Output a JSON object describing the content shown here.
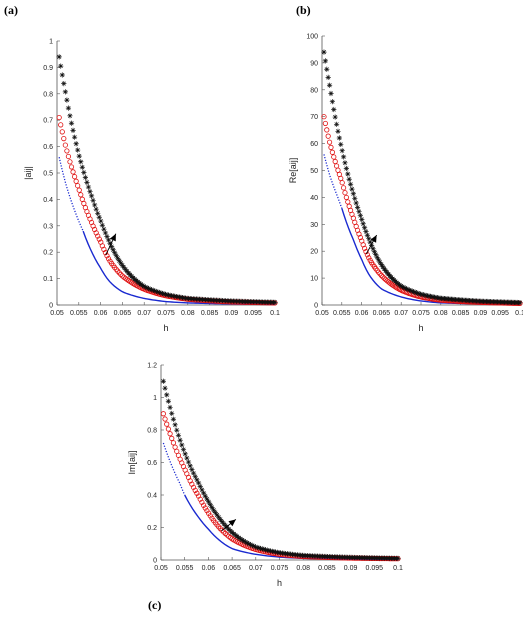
{
  "panel_labels": [
    "(a)",
    "(b)",
    "(c)"
  ],
  "series_styles": {
    "blue_solid": "#1a2ad0",
    "blue_dotted": "#1a2ad0",
    "red_circles": "#e01010",
    "black_stars": "#111111"
  },
  "chart_data": [
    {
      "type": "scatter",
      "panel": "(a)",
      "xlabel": "h",
      "ylabel": "|aij|",
      "xlim": [
        0.05,
        0.1
      ],
      "ylim": [
        0,
        1
      ],
      "x_ticks": [
        "0.05",
        "0.055",
        "0.06",
        "0.065",
        "0.07",
        "0.075",
        "0.08",
        "0.085",
        "0.09",
        "0.095",
        "0.1"
      ],
      "y_ticks": [
        "0",
        "0.1",
        "0.2",
        "0.3",
        "0.4",
        "0.5",
        "0.6",
        "0.7",
        "0.8",
        "0.9",
        "1"
      ],
      "series": [
        {
          "style": "blue_solid",
          "x": [
            0.056,
            0.058,
            0.06,
            0.062,
            0.065,
            0.07,
            0.075,
            0.08,
            0.09,
            0.1
          ],
          "y": [
            0.28,
            0.2,
            0.14,
            0.09,
            0.05,
            0.025,
            0.013,
            0.008,
            0.004,
            0.002
          ]
        },
        {
          "style": "blue_dotted",
          "x": [
            0.0505,
            0.052,
            0.054,
            0.056
          ],
          "y": [
            0.56,
            0.46,
            0.36,
            0.28
          ]
        },
        {
          "style": "red_circles",
          "x": [
            0.0505,
            0.052,
            0.055,
            0.058,
            0.06,
            0.062,
            0.065,
            0.07,
            0.075,
            0.08,
            0.09,
            0.1
          ],
          "y": [
            0.71,
            0.6,
            0.44,
            0.31,
            0.24,
            0.17,
            0.11,
            0.06,
            0.035,
            0.022,
            0.012,
            0.008
          ]
        },
        {
          "style": "black_stars",
          "x": [
            0.0505,
            0.052,
            0.055,
            0.058,
            0.06,
            0.062,
            0.065,
            0.07,
            0.075,
            0.08,
            0.09,
            0.1
          ],
          "y": [
            0.94,
            0.8,
            0.57,
            0.41,
            0.32,
            0.24,
            0.15,
            0.07,
            0.04,
            0.025,
            0.015,
            0.01
          ]
        }
      ],
      "arrow": {
        "x1": 0.0612,
        "y1": 0.19,
        "x2": 0.0635,
        "y2": 0.27
      }
    },
    {
      "type": "scatter",
      "panel": "(b)",
      "xlabel": "h",
      "ylabel": "Re[aij]",
      "xlim": [
        0.05,
        0.1
      ],
      "ylim": [
        0,
        100
      ],
      "x_ticks": [
        "0.05",
        "0.055",
        "0.06",
        "0.065",
        "0.07",
        "0.075",
        "0.08",
        "0.085",
        "0.09",
        "0.095",
        "0.1"
      ],
      "y_ticks": [
        "0",
        "10",
        "20",
        "30",
        "40",
        "50",
        "60",
        "70",
        "80",
        "90",
        "100"
      ],
      "series": [
        {
          "style": "blue_solid",
          "x": [
            0.055,
            0.058,
            0.06,
            0.062,
            0.065,
            0.07,
            0.075,
            0.08,
            0.09,
            0.1
          ],
          "y": [
            36,
            24,
            17,
            11,
            6,
            3,
            1.5,
            0.8,
            0.4,
            0.2
          ]
        },
        {
          "style": "blue_dotted",
          "x": [
            0.0505,
            0.052,
            0.054,
            0.055
          ],
          "y": [
            56,
            48,
            40,
            36
          ]
        },
        {
          "style": "red_circles",
          "x": [
            0.0505,
            0.052,
            0.055,
            0.058,
            0.06,
            0.062,
            0.065,
            0.07,
            0.075,
            0.08,
            0.09,
            0.1
          ],
          "y": [
            70,
            60,
            46,
            32,
            24,
            17,
            11,
            5.5,
            3,
            1.8,
            1,
            0.6
          ]
        },
        {
          "style": "black_stars",
          "x": [
            0.0505,
            0.052,
            0.055,
            0.058,
            0.06,
            0.062,
            0.065,
            0.07,
            0.075,
            0.08,
            0.09,
            0.1
          ],
          "y": [
            94,
            81,
            58,
            41,
            32,
            24,
            15,
            7,
            4,
            2.5,
            1.4,
            0.9
          ]
        }
      ],
      "arrow": {
        "x1": 0.0612,
        "y1": 19,
        "x2": 0.0638,
        "y2": 26
      }
    },
    {
      "type": "scatter",
      "panel": "(c)",
      "xlabel": "h",
      "ylabel": "Im[aij]",
      "xlim": [
        0.05,
        0.1
      ],
      "ylim": [
        0,
        1.2
      ],
      "x_ticks": [
        "0.05",
        "0.055",
        "0.06",
        "0.065",
        "0.07",
        "0.075",
        "0.08",
        "0.085",
        "0.09",
        "0.095",
        "0.1"
      ],
      "y_ticks": [
        "0",
        "0.2",
        "0.4",
        "0.6",
        "0.8",
        "1",
        "1.2"
      ],
      "series": [
        {
          "style": "blue_solid",
          "x": [
            0.055,
            0.058,
            0.06,
            0.062,
            0.065,
            0.07,
            0.075,
            0.08,
            0.09,
            0.1
          ],
          "y": [
            0.4,
            0.26,
            0.19,
            0.13,
            0.07,
            0.035,
            0.018,
            0.01,
            0.005,
            0.003
          ]
        },
        {
          "style": "blue_dotted",
          "x": [
            0.0505,
            0.052,
            0.054,
            0.055
          ],
          "y": [
            0.72,
            0.6,
            0.47,
            0.4
          ]
        },
        {
          "style": "red_circles",
          "x": [
            0.0505,
            0.052,
            0.055,
            0.058,
            0.06,
            0.062,
            0.065,
            0.07,
            0.075,
            0.08,
            0.09,
            0.1
          ],
          "y": [
            0.9,
            0.77,
            0.56,
            0.39,
            0.29,
            0.21,
            0.13,
            0.065,
            0.035,
            0.022,
            0.012,
            0.008
          ]
        },
        {
          "style": "black_stars",
          "x": [
            0.0505,
            0.052,
            0.055,
            0.058,
            0.06,
            0.062,
            0.065,
            0.07,
            0.075,
            0.08,
            0.09,
            0.1
          ],
          "y": [
            1.1,
            0.93,
            0.66,
            0.47,
            0.36,
            0.27,
            0.17,
            0.08,
            0.045,
            0.028,
            0.016,
            0.01
          ]
        }
      ],
      "arrow": {
        "x1": 0.0628,
        "y1": 0.18,
        "x2": 0.0658,
        "y2": 0.25
      }
    }
  ]
}
